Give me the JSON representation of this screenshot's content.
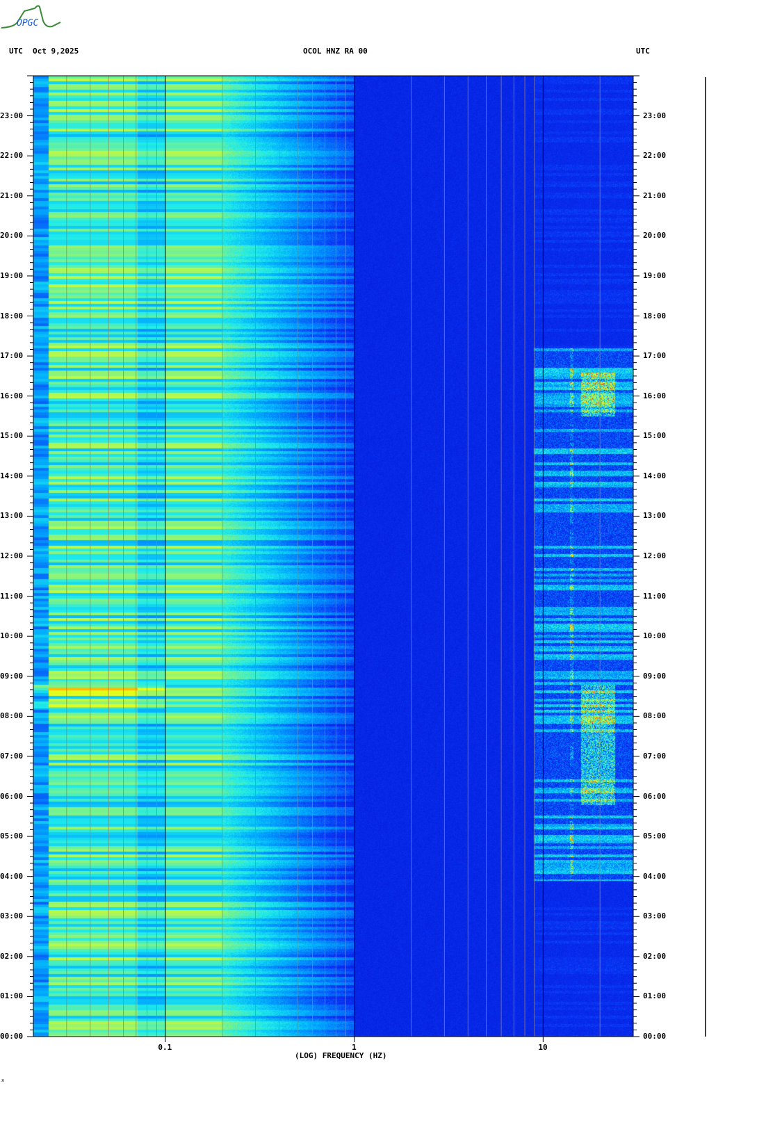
{
  "header": {
    "logo_text": "OPGC",
    "left_label": "UTC",
    "date": "Oct 9,2025",
    "station": "OCOL HNZ RA 00",
    "right_label": "UTC"
  },
  "footer_mark": "x",
  "colors": {
    "low": "#0010c8",
    "mid": "#00c8ff",
    "high": "#ffff00",
    "peak": "#c80000"
  },
  "chart_data": {
    "type": "heatmap",
    "title": "OCOL HNZ RA 00",
    "xlabel": "(LOG) FREQUENCY (HZ)",
    "ylabel": "UTC",
    "xscale": "log",
    "xlim": [
      0.02,
      30
    ],
    "ylim_hours": [
      0,
      24
    ],
    "x_ticks": [
      {
        "value": 0.1,
        "label": "0.1"
      },
      {
        "value": 1,
        "label": "1"
      },
      {
        "value": 10,
        "label": "10"
      }
    ],
    "y_ticks": [
      "00:00",
      "01:00",
      "02:00",
      "03:00",
      "04:00",
      "05:00",
      "06:00",
      "07:00",
      "08:00",
      "09:00",
      "10:00",
      "11:00",
      "12:00",
      "13:00",
      "14:00",
      "15:00",
      "16:00",
      "17:00",
      "18:00",
      "19:00",
      "20:00",
      "21:00",
      "22:00",
      "23:00"
    ],
    "features": [
      {
        "description": "strong microseism energy",
        "freq_range_hz": [
          0.025,
          0.2
        ],
        "hours": [
          0,
          24
        ]
      },
      {
        "description": "high-frequency cultural noise",
        "freq_range_hz": [
          10,
          30
        ],
        "hours": [
          4,
          17
        ]
      },
      {
        "description": "peak energy near 14 Hz",
        "freq_hz": 14,
        "hours": [
          4,
          17
        ]
      }
    ],
    "grid": true
  }
}
